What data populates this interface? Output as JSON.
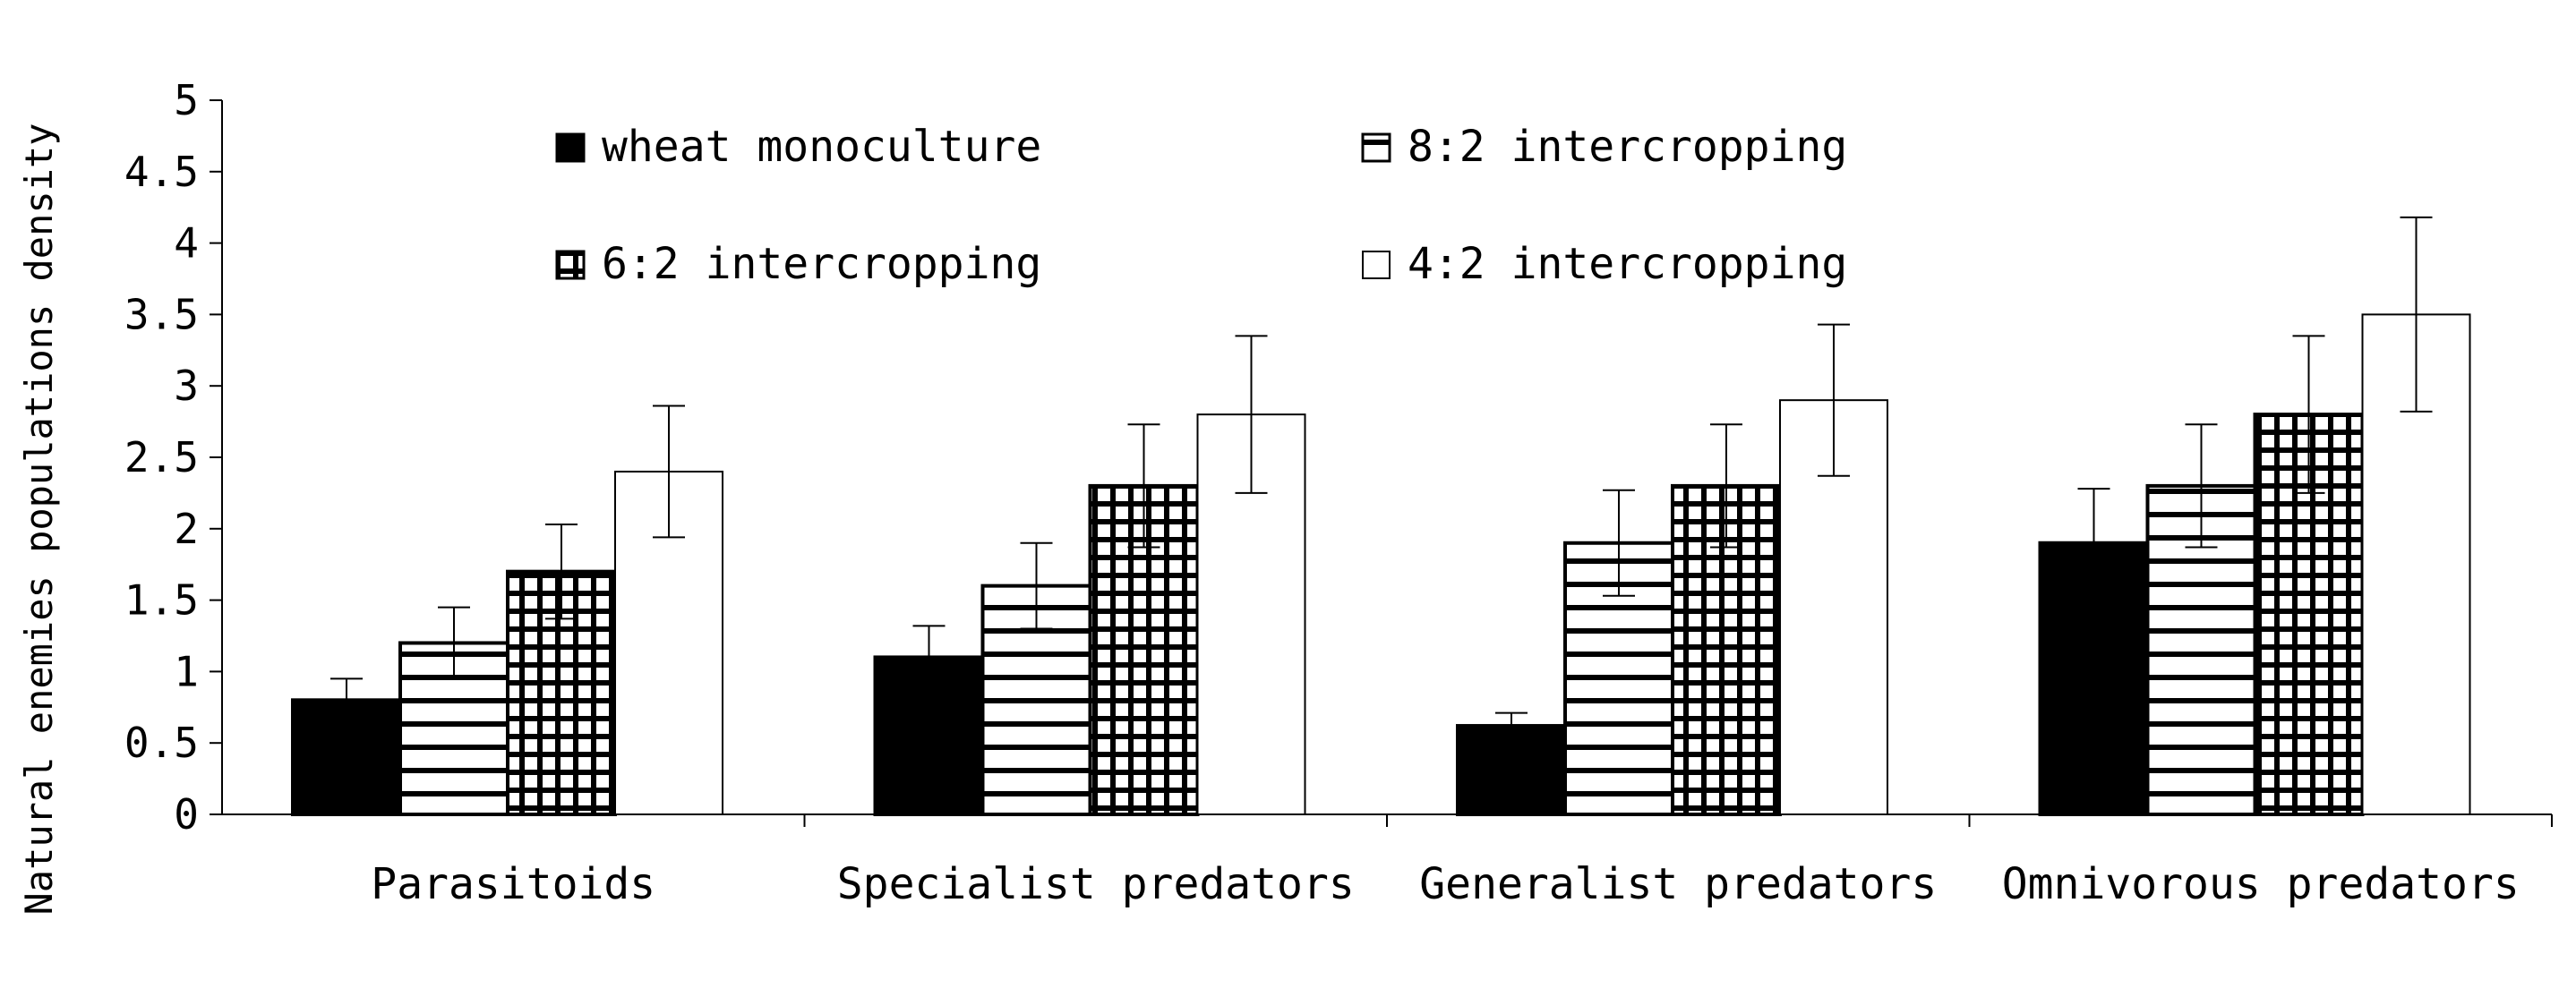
{
  "chart_data": {
    "type": "bar",
    "title": "",
    "xlabel": "",
    "ylabel": "Natural enemies populations density",
    "ylim": [
      0,
      5
    ],
    "yticks": [
      0,
      0.5,
      1,
      1.5,
      2,
      2.5,
      3,
      3.5,
      4,
      4.5,
      5
    ],
    "ytick_labels": [
      "0",
      "0.5",
      "1",
      "1.5",
      "2",
      "2.5",
      "3",
      "3.5",
      "4",
      "4.5",
      "5"
    ],
    "grid": false,
    "legend_position": "top-left, inside plot, two columns",
    "categories": [
      "Parasitoids",
      "Specialist predators",
      "Generalist predators",
      "Omnivorous predators"
    ],
    "series": [
      {
        "name": "wheat monoculture",
        "pattern": "solid",
        "color": "#000000",
        "values": [
          0.8,
          1.1,
          0.62,
          1.9
        ],
        "errors": [
          0.15,
          0.22,
          0.09,
          0.38
        ]
      },
      {
        "name": "8:2 intercropping",
        "pattern": "horizontal-lines",
        "color": "#000000",
        "values": [
          1.2,
          1.6,
          1.9,
          2.3
        ],
        "errors": [
          0.25,
          0.3,
          0.37,
          0.43
        ]
      },
      {
        "name": "6:2 intercropping",
        "pattern": "grid",
        "color": "#000000",
        "values": [
          1.7,
          2.3,
          2.3,
          2.8
        ],
        "errors": [
          0.33,
          0.43,
          0.43,
          0.55
        ]
      },
      {
        "name": "4:2 intercropping",
        "pattern": "open",
        "color": "#000000",
        "values": [
          2.4,
          2.8,
          2.9,
          3.5
        ],
        "errors": [
          0.46,
          0.55,
          0.53,
          0.68
        ]
      }
    ]
  }
}
